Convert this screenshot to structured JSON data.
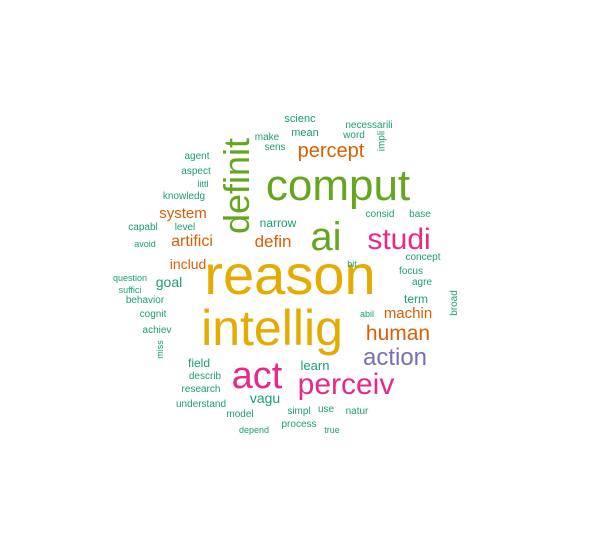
{
  "colors": {
    "teal": "#1b9e77",
    "orange": "#d95f02",
    "purple": "#7570b3",
    "magenta": "#e7298a",
    "green": "#66a61e",
    "gold": "#e6ab02"
  },
  "words": [
    {
      "text": "reason",
      "color": "gold"
    },
    {
      "text": "intellig",
      "color": "gold"
    },
    {
      "text": "comput",
      "color": "green"
    },
    {
      "text": "ai",
      "color": "green"
    },
    {
      "text": "definit",
      "color": "green"
    },
    {
      "text": "act",
      "color": "magenta"
    },
    {
      "text": "studi",
      "color": "magenta"
    },
    {
      "text": "perceiv",
      "color": "magenta"
    },
    {
      "text": "action",
      "color": "purple"
    },
    {
      "text": "human",
      "color": "orange"
    },
    {
      "text": "percept",
      "color": "orange"
    },
    {
      "text": "defin",
      "color": "orange"
    },
    {
      "text": "system",
      "color": "orange"
    },
    {
      "text": "artifici",
      "color": "orange"
    },
    {
      "text": "machin",
      "color": "orange"
    },
    {
      "text": "includ",
      "color": "orange"
    },
    {
      "text": "goal",
      "color": "teal"
    },
    {
      "text": "vagu",
      "color": "teal"
    },
    {
      "text": "learn",
      "color": "teal"
    },
    {
      "text": "narrow",
      "color": "teal"
    },
    {
      "text": "field",
      "color": "teal"
    },
    {
      "text": "term",
      "color": "teal"
    },
    {
      "text": "scienc",
      "color": "teal"
    },
    {
      "text": "necessarili",
      "color": "teal"
    },
    {
      "text": "make",
      "color": "teal"
    },
    {
      "text": "mean",
      "color": "teal"
    },
    {
      "text": "word",
      "color": "teal"
    },
    {
      "text": "impli",
      "color": "teal"
    },
    {
      "text": "sens",
      "color": "teal"
    },
    {
      "text": "agent",
      "color": "teal"
    },
    {
      "text": "aspect",
      "color": "teal"
    },
    {
      "text": "littl",
      "color": "teal"
    },
    {
      "text": "knowledg",
      "color": "teal"
    },
    {
      "text": "capabl",
      "color": "teal"
    },
    {
      "text": "level",
      "color": "teal"
    },
    {
      "text": "avoid",
      "color": "teal"
    },
    {
      "text": "consid",
      "color": "teal"
    },
    {
      "text": "base",
      "color": "teal"
    },
    {
      "text": "question",
      "color": "teal"
    },
    {
      "text": "suffici",
      "color": "teal"
    },
    {
      "text": "behavior",
      "color": "teal"
    },
    {
      "text": "cognit",
      "color": "teal"
    },
    {
      "text": "achiev",
      "color": "teal"
    },
    {
      "text": "miss",
      "color": "teal"
    },
    {
      "text": "concept",
      "color": "teal"
    },
    {
      "text": "bit",
      "color": "teal"
    },
    {
      "text": "focus",
      "color": "teal"
    },
    {
      "text": "agre",
      "color": "teal"
    },
    {
      "text": "broad",
      "color": "teal"
    },
    {
      "text": "abil",
      "color": "teal"
    },
    {
      "text": "describ",
      "color": "teal"
    },
    {
      "text": "research",
      "color": "teal"
    },
    {
      "text": "understand",
      "color": "teal"
    },
    {
      "text": "model",
      "color": "teal"
    },
    {
      "text": "simpl",
      "color": "teal"
    },
    {
      "text": "use",
      "color": "teal"
    },
    {
      "text": "natur",
      "color": "teal"
    },
    {
      "text": "process",
      "color": "teal"
    },
    {
      "text": "depend",
      "color": "teal"
    },
    {
      "text": "true",
      "color": "teal"
    }
  ]
}
